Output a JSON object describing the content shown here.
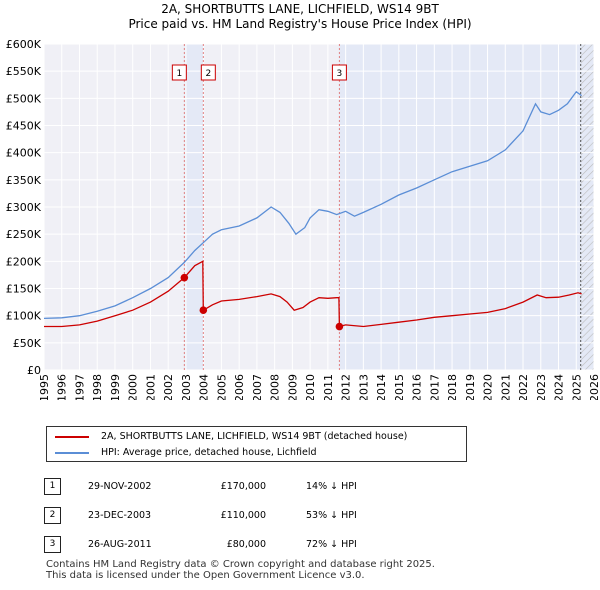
{
  "chart_data": {
    "type": "line",
    "title": "2A, SHORTBUTTS LANE, LICHFIELD, WS14 9BT",
    "subtitle": "Price paid vs. HM Land Registry's House Price Index (HPI)",
    "ylim": [
      0,
      600000
    ],
    "xlim": [
      1995,
      2026
    ],
    "y_ticks": [
      0,
      50000,
      100000,
      150000,
      200000,
      250000,
      300000,
      350000,
      400000,
      450000,
      500000,
      550000,
      600000
    ],
    "y_tick_labels": [
      "£0",
      "£50K",
      "£100K",
      "£150K",
      "£200K",
      "£250K",
      "£300K",
      "£350K",
      "£400K",
      "£450K",
      "£500K",
      "£550K",
      "£600K"
    ],
    "x_ticks": [
      1995,
      1996,
      1997,
      1998,
      1999,
      2000,
      2001,
      2002,
      2003,
      2004,
      2005,
      2006,
      2007,
      2008,
      2009,
      2010,
      2011,
      2012,
      2013,
      2014,
      2015,
      2016,
      2017,
      2018,
      2019,
      2020,
      2021,
      2022,
      2023,
      2024,
      2025,
      2026
    ],
    "x_tick_labels": [
      "1995",
      "1996",
      "1997",
      "1998",
      "1999",
      "2000",
      "2001",
      "2002",
      "2003",
      "2004",
      "2005",
      "2006",
      "2007",
      "2008",
      "2009",
      "2010",
      "2011",
      "2012",
      "2013",
      "2014",
      "2015",
      "2016",
      "2017",
      "2018",
      "2019",
      "2020",
      "2021",
      "2022",
      "2023",
      "2024",
      "2025",
      "2026"
    ],
    "grid": true,
    "series": [
      {
        "name": "2A, SHORTBUTTS LANE, LICHFIELD, WS14 9BT (detached house)",
        "color": "#cc0000",
        "points": [
          [
            1995.0,
            80000
          ],
          [
            1996.0,
            80000
          ],
          [
            1997.0,
            83000
          ],
          [
            1998.0,
            90000
          ],
          [
            1999.0,
            100000
          ],
          [
            2000.0,
            110000
          ],
          [
            2001.0,
            125000
          ],
          [
            2002.0,
            145000
          ],
          [
            2002.91,
            170000
          ],
          [
            2003.5,
            192000
          ],
          [
            2003.95,
            200000
          ],
          [
            2003.98,
            110000
          ],
          [
            2004.5,
            120000
          ],
          [
            2005.0,
            127000
          ],
          [
            2006.0,
            130000
          ],
          [
            2007.0,
            135000
          ],
          [
            2007.8,
            140000
          ],
          [
            2008.3,
            135000
          ],
          [
            2008.7,
            125000
          ],
          [
            2009.1,
            110000
          ],
          [
            2009.6,
            115000
          ],
          [
            2010.0,
            125000
          ],
          [
            2010.5,
            133000
          ],
          [
            2011.0,
            132000
          ],
          [
            2011.5,
            133000
          ],
          [
            2011.62,
            133000
          ],
          [
            2011.65,
            80000
          ],
          [
            2012.0,
            83000
          ],
          [
            2013.0,
            80000
          ],
          [
            2014.0,
            84000
          ],
          [
            2015.0,
            88000
          ],
          [
            2016.0,
            92000
          ],
          [
            2017.0,
            97000
          ],
          [
            2018.0,
            100000
          ],
          [
            2019.0,
            103000
          ],
          [
            2020.0,
            106000
          ],
          [
            2021.0,
            113000
          ],
          [
            2022.0,
            125000
          ],
          [
            2022.8,
            138000
          ],
          [
            2023.3,
            133000
          ],
          [
            2024.0,
            134000
          ],
          [
            2024.6,
            138000
          ],
          [
            2025.1,
            142000
          ],
          [
            2025.3,
            140000
          ]
        ]
      },
      {
        "name": "HPI: Average price, detached house, Lichfield",
        "color": "#5b8ed6",
        "points": [
          [
            1995.0,
            95000
          ],
          [
            1996.0,
            96000
          ],
          [
            1997.0,
            100000
          ],
          [
            1998.0,
            108000
          ],
          [
            1999.0,
            118000
          ],
          [
            2000.0,
            133000
          ],
          [
            2001.0,
            150000
          ],
          [
            2002.0,
            170000
          ],
          [
            2002.91,
            198000
          ],
          [
            2003.5,
            220000
          ],
          [
            2004.0,
            235000
          ],
          [
            2004.5,
            250000
          ],
          [
            2005.0,
            258000
          ],
          [
            2006.0,
            265000
          ],
          [
            2007.0,
            280000
          ],
          [
            2007.8,
            300000
          ],
          [
            2008.3,
            290000
          ],
          [
            2008.8,
            270000
          ],
          [
            2009.2,
            250000
          ],
          [
            2009.7,
            262000
          ],
          [
            2010.0,
            280000
          ],
          [
            2010.5,
            295000
          ],
          [
            2011.0,
            292000
          ],
          [
            2011.5,
            286000
          ],
          [
            2012.0,
            292000
          ],
          [
            2012.5,
            283000
          ],
          [
            2013.0,
            290000
          ],
          [
            2014.0,
            305000
          ],
          [
            2015.0,
            322000
          ],
          [
            2016.0,
            335000
          ],
          [
            2017.0,
            350000
          ],
          [
            2018.0,
            365000
          ],
          [
            2019.0,
            375000
          ],
          [
            2020.0,
            385000
          ],
          [
            2021.0,
            405000
          ],
          [
            2022.0,
            440000
          ],
          [
            2022.7,
            490000
          ],
          [
            2023.0,
            475000
          ],
          [
            2023.5,
            470000
          ],
          [
            2024.0,
            478000
          ],
          [
            2024.5,
            490000
          ],
          [
            2025.0,
            512000
          ],
          [
            2025.3,
            505000
          ]
        ]
      }
    ],
    "sale_markers": [
      {
        "label": "1",
        "x": 2002.91,
        "y": 170000
      },
      {
        "label": "2",
        "x": 2003.98,
        "y": 110000
      },
      {
        "label": "3",
        "x": 2011.65,
        "y": 80000
      }
    ],
    "shaded_regions": [
      [
        2002.91,
        2003.98
      ],
      [
        2011.65,
        2026
      ]
    ],
    "hatched_region": [
      2025.25,
      2026
    ]
  },
  "legend": {
    "property_label": "2A, SHORTBUTTS LANE, LICHFIELD, WS14 9BT (detached house)",
    "hpi_label": "HPI: Average price, detached house, Lichfield",
    "property_color": "#cc0000",
    "hpi_color": "#5b8ed6"
  },
  "sales": [
    {
      "num": "1",
      "date": "29-NOV-2002",
      "price": "£170,000",
      "hpi": "14% ↓ HPI"
    },
    {
      "num": "2",
      "date": "23-DEC-2003",
      "price": "£110,000",
      "hpi": "53% ↓ HPI"
    },
    {
      "num": "3",
      "date": "26-AUG-2011",
      "price": "£80,000",
      "hpi": "72% ↓ HPI"
    }
  ],
  "footer": {
    "line1": "Contains HM Land Registry data © Crown copyright and database right 2025.",
    "line2": "This data is licensed under the Open Government Licence v3.0."
  }
}
